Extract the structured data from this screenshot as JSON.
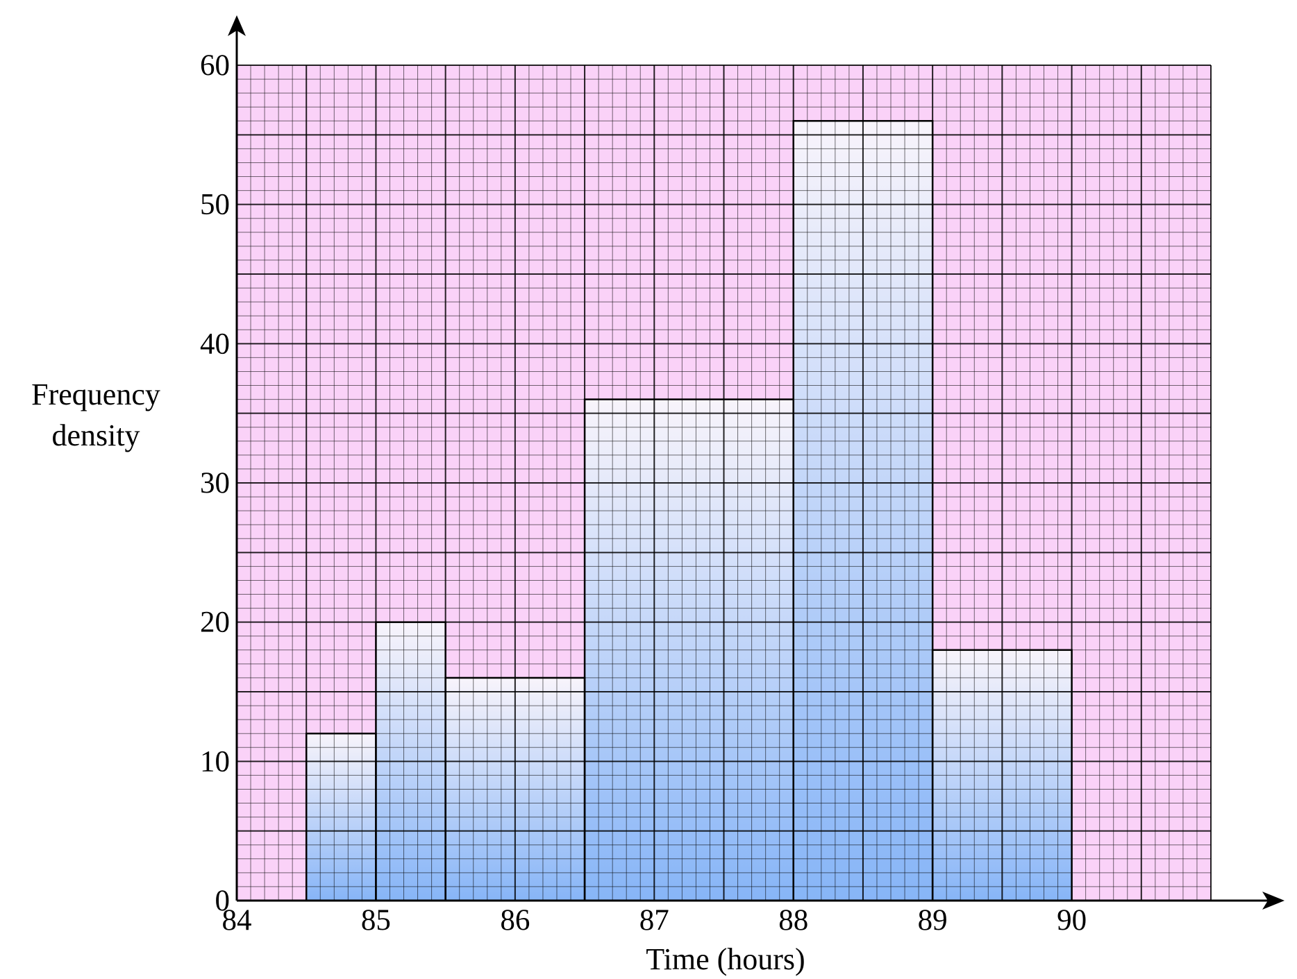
{
  "chart_data": {
    "type": "bar",
    "subtype": "histogram",
    "xlabel": "Time (hours)",
    "ylabel_lines": [
      "Frequency",
      "density"
    ],
    "x_ticks": [
      "84",
      "85",
      "86",
      "87",
      "88",
      "89",
      "90"
    ],
    "y_ticks": [
      "0",
      "10",
      "20",
      "30",
      "40",
      "50",
      "60"
    ],
    "xlim": [
      84,
      91
    ],
    "ylim": [
      0,
      60
    ],
    "grid": "on",
    "bars": [
      {
        "x_start": 84.5,
        "x_end": 85.0,
        "value": 12
      },
      {
        "x_start": 85.0,
        "x_end": 85.5,
        "value": 20
      },
      {
        "x_start": 85.5,
        "x_end": 86.5,
        "value": 16
      },
      {
        "x_start": 86.5,
        "x_end": 88.0,
        "value": 36
      },
      {
        "x_start": 88.0,
        "x_end": 89.0,
        "value": 56
      },
      {
        "x_start": 89.0,
        "x_end": 90.0,
        "value": 18
      }
    ],
    "colors": {
      "grid_background": "#fad2f8",
      "bar_top": "#f8f4fb",
      "bar_bottom": "#87b5f7"
    }
  }
}
